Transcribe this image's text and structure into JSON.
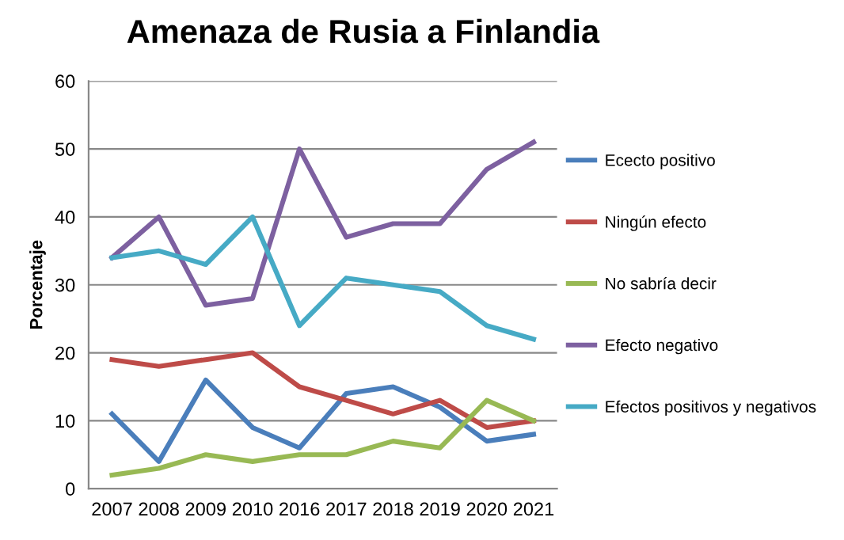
{
  "chart_data": {
    "type": "line",
    "title": "Amenaza de Rusia a Finlandia",
    "ylabel": "Porcentaje",
    "categories": [
      "2007",
      "2008",
      "2009",
      "2010",
      "2016",
      "2017",
      "2018",
      "2019",
      "2020",
      "2021"
    ],
    "series": [
      {
        "name": "Ececto positivo",
        "color": "#4a7ebb",
        "values": [
          11,
          4,
          16,
          9,
          6,
          14,
          15,
          12,
          7,
          8
        ]
      },
      {
        "name": "Ningún efecto",
        "color": "#be4b48",
        "values": [
          19,
          18,
          19,
          20,
          15,
          13,
          11,
          13,
          9,
          10
        ]
      },
      {
        "name": "No sabría decir",
        "color": "#98b954",
        "values": [
          2,
          3,
          5,
          4,
          5,
          5,
          7,
          6,
          13,
          10
        ]
      },
      {
        "name": "Efecto negativo",
        "color": "#7d60a0",
        "values": [
          34,
          40,
          27,
          28,
          50,
          37,
          39,
          39,
          47,
          51
        ]
      },
      {
        "name": "Efectos positivos y negativos",
        "color": "#46aac5",
        "values": [
          34,
          35,
          33,
          40,
          24,
          31,
          30,
          29,
          24,
          22
        ]
      }
    ],
    "ylim": [
      0,
      60
    ],
    "yticks": [
      0,
      10,
      20,
      30,
      40,
      50,
      60
    ],
    "grid": "y",
    "legend": "right",
    "marker": "none",
    "line_style": "solid"
  }
}
